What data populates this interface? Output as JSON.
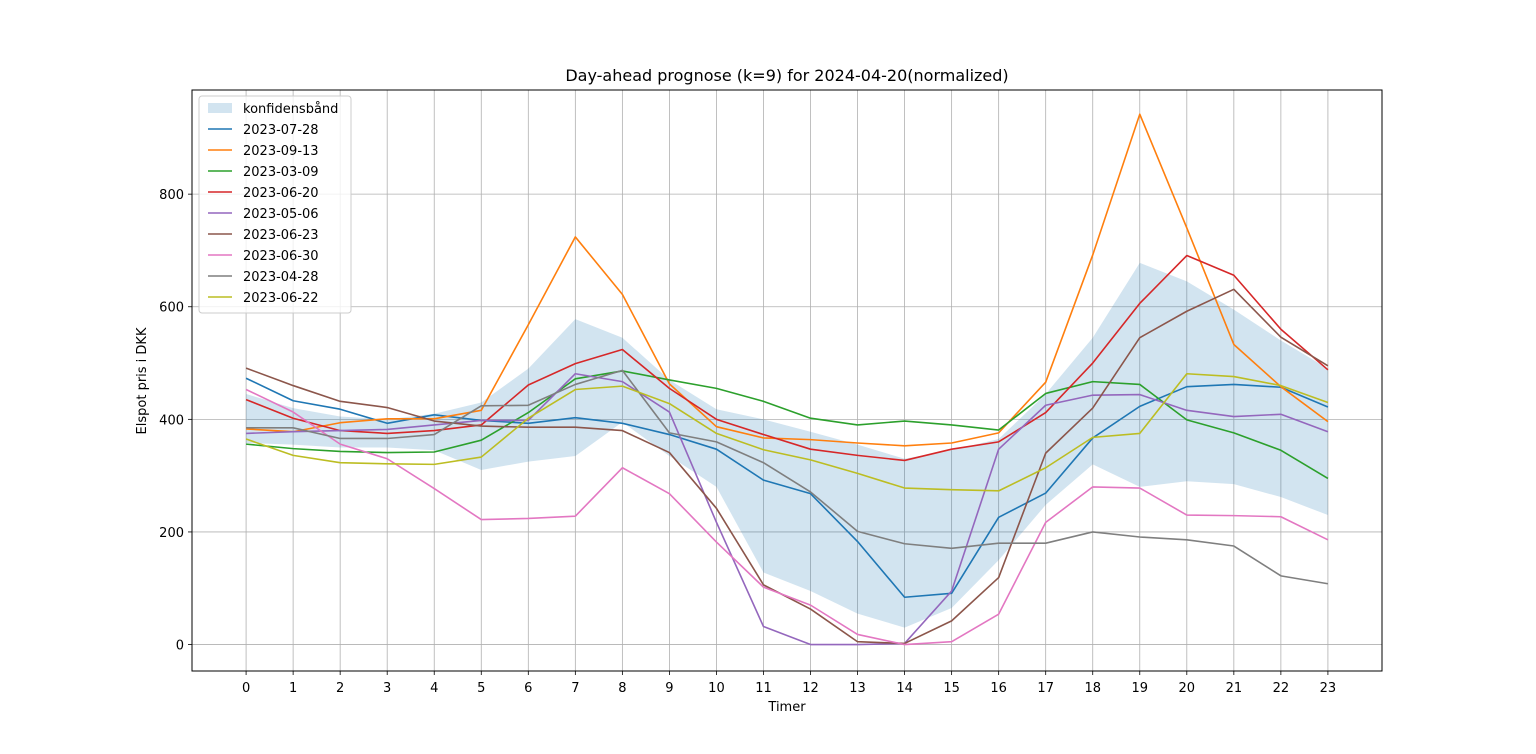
{
  "chart_data": {
    "type": "line",
    "title": "Day-ahead prognose (k=9) for 2024-04-20(normalized)",
    "xlabel": "Timer",
    "ylabel": "Elspot pris i DKK",
    "x": [
      0,
      1,
      2,
      3,
      4,
      5,
      6,
      7,
      8,
      9,
      10,
      11,
      12,
      13,
      14,
      15,
      16,
      17,
      18,
      19,
      20,
      21,
      22,
      23
    ],
    "xlim": [
      -1.15,
      24.15
    ],
    "ylim": [
      -47,
      985
    ],
    "yticks": [
      0,
      200,
      400,
      600,
      800
    ],
    "grid": true,
    "legend_position": "top-left",
    "band": {
      "name": "konfidensbånd",
      "color": "#1f77b4",
      "upper": [
        445,
        420,
        405,
        400,
        410,
        430,
        490,
        578,
        545,
        470,
        418,
        400,
        378,
        355,
        330,
        345,
        365,
        445,
        545,
        678,
        645,
        595,
        540,
        490
      ],
      "lower": [
        358,
        355,
        350,
        350,
        345,
        310,
        325,
        335,
        395,
        335,
        280,
        128,
        95,
        55,
        30,
        65,
        150,
        248,
        320,
        280,
        290,
        285,
        262,
        230
      ]
    },
    "series": [
      {
        "name": "2023-07-28",
        "color": "#1f77b4",
        "values": [
          473,
          433,
          418,
          393,
          408,
          398,
          393,
          403,
          393,
          373,
          347,
          292,
          268,
          183,
          84,
          91,
          226,
          269,
          367,
          423,
          458,
          462,
          457,
          422
        ]
      },
      {
        "name": "2023-09-13",
        "color": "#ff7f0e",
        "values": [
          383,
          378,
          394,
          401,
          401,
          416,
          568,
          724,
          622,
          463,
          387,
          367,
          364,
          358,
          353,
          358,
          376,
          466,
          692,
          942,
          740,
          533,
          458,
          396
        ]
      },
      {
        "name": "2023-03-09",
        "color": "#2ca02c",
        "values": [
          356,
          348,
          343,
          341,
          342,
          363,
          412,
          472,
          486,
          470,
          455,
          432,
          402,
          390,
          397,
          390,
          381,
          446,
          467,
          462,
          399,
          376,
          345,
          295
        ]
      },
      {
        "name": "2023-06-20",
        "color": "#d62728",
        "values": [
          435,
          402,
          380,
          375,
          380,
          390,
          461,
          499,
          524,
          455,
          400,
          373,
          347,
          336,
          327,
          347,
          360,
          412,
          500,
          606,
          691,
          656,
          560,
          488
        ]
      },
      {
        "name": "2023-05-06",
        "color": "#9467bd",
        "values": [
          375,
          378,
          380,
          382,
          390,
          398,
          398,
          481,
          467,
          413,
          217,
          32,
          0,
          0,
          2,
          95,
          347,
          425,
          443,
          444,
          416,
          405,
          409,
          378
        ]
      },
      {
        "name": "2023-06-23",
        "color": "#8c564b",
        "values": [
          491,
          460,
          432,
          421,
          397,
          388,
          386,
          386,
          380,
          341,
          242,
          106,
          63,
          5,
          2,
          42,
          119,
          340,
          420,
          545,
          592,
          631,
          546,
          495
        ]
      },
      {
        "name": "2023-06-30",
        "color": "#e377c2",
        "values": [
          453,
          413,
          356,
          330,
          277,
          222,
          224,
          228,
          314,
          268,
          182,
          102,
          70,
          18,
          0,
          5,
          54,
          217,
          280,
          278,
          230,
          229,
          227,
          186
        ]
      },
      {
        "name": "2023-04-28",
        "color": "#7f7f7f",
        "values": [
          385,
          385,
          366,
          366,
          373,
          424,
          425,
          462,
          487,
          376,
          360,
          323,
          271,
          201,
          179,
          171,
          180,
          180,
          200,
          191,
          186,
          175,
          122,
          108
        ]
      },
      {
        "name": "2023-06-22",
        "color": "#bcbd22",
        "values": [
          365,
          336,
          323,
          321,
          320,
          333,
          402,
          453,
          459,
          428,
          375,
          346,
          328,
          304,
          278,
          275,
          273,
          314,
          368,
          375,
          481,
          476,
          460,
          430
        ]
      }
    ]
  }
}
